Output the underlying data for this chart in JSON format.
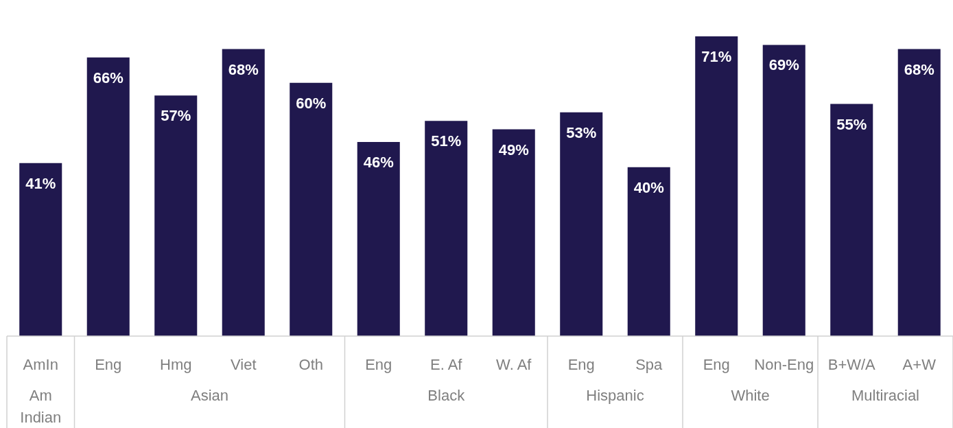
{
  "chart_data": {
    "type": "bar",
    "categories": [
      "AmIn",
      "Eng",
      "Hmg",
      "Viet",
      "Oth",
      "Eng",
      "E. Af",
      "W. Af",
      "Eng",
      "Spa",
      "Eng",
      "Non-Eng",
      "B+W/A",
      "A+W"
    ],
    "values": [
      41,
      66,
      57,
      68,
      60,
      46,
      51,
      49,
      53,
      40,
      71,
      69,
      55,
      68
    ],
    "color": "#20184e",
    "data_labels": true,
    "value_labels": [
      "41%",
      "66%",
      "57%",
      "68%",
      "60%",
      "46%",
      "51%",
      "49%",
      "53%",
      "40%",
      "71%",
      "69%",
      "55%",
      "68%"
    ],
    "annotations": [
      "Am Indian",
      "Asian",
      "Black",
      "Hispanic",
      "White",
      "Multiracial"
    ]
  }
}
